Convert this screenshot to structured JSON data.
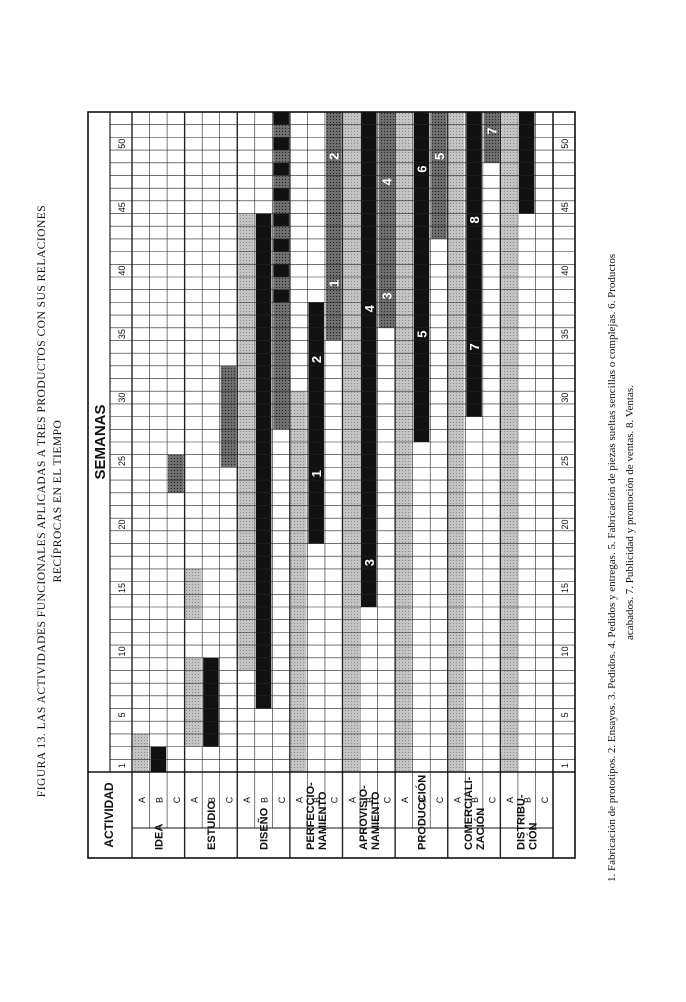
{
  "caption": {
    "line1": "FIGURA 13.   LAS ACTIVIDADES FUNCIONALES APLICADAS A TRES PRODUCTOS CON SUS RELACIONES",
    "line2": "RECÍPROCAS EN EL TIEMPO"
  },
  "notes": {
    "line1": "1. Fabricación de prototipos.   2. Ensayos.   3. Pedidos.   4. Pedidos y entregas.   5. Fabricación de piezas sueltas sencillas o complejas.   6. Productos",
    "line2": "acabados.   7. Publicidad y promoción de ventas.   8. Ventas."
  },
  "chart_data": {
    "type": "gantt",
    "header_activity": "ACTIVIDAD",
    "header_weeks": "SEMANAS",
    "week_range": [
      1,
      52
    ],
    "tick_labels": [
      "1",
      "5",
      "10",
      "15",
      "20",
      "25",
      "30",
      "35",
      "40",
      "45",
      "50"
    ],
    "fills": {
      "black": "#111111",
      "dark": "#6e6e6e",
      "light": "#c4c4c4",
      "stripe": "#111111"
    },
    "groups": [
      {
        "name": "IDEA",
        "rows": [
          {
            "label": "A",
            "bars": []
          },
          {
            "label": "B",
            "bars": [
              {
                "start": 1,
                "end": 2,
                "fill": "black"
              }
            ]
          },
          {
            "label": "C",
            "bars": []
          }
        ]
      },
      {
        "name": "ESTUDIO",
        "rows": [
          {
            "label": "A",
            "bars": []
          },
          {
            "label": "B",
            "bars": [
              {
                "start": 3,
                "end": 9,
                "fill": "black"
              }
            ]
          },
          {
            "label": "C",
            "bars": []
          }
        ]
      },
      {
        "name": "DISEÑO",
        "rows": [
          {
            "label": "A",
            "bars": []
          },
          {
            "label": "B",
            "bars": [
              {
                "start": 6,
                "end": 44,
                "fill": "black"
              }
            ]
          },
          {
            "label": "C",
            "bars": []
          }
        ]
      },
      {
        "name": "PERFECCIO-\nNAMIENTO",
        "rows": [
          {
            "label": "A",
            "bars": []
          },
          {
            "label": "B",
            "bars": [
              {
                "start": 19,
                "end": 37,
                "fill": "black",
                "marks": [
                  {
                    "label": "1",
                    "at": 24
                  },
                  {
                    "label": "2",
                    "at": 33
                  }
                ]
              }
            ]
          },
          {
            "label": "C",
            "bars": [
              {
                "start": 35,
                "end": 52,
                "fill": "dark",
                "marks": [
                  {
                    "label": "1",
                    "at": 39
                  },
                  {
                    "label": "2",
                    "at": 49
                  }
                ]
              }
            ]
          }
        ]
      },
      {
        "name": "APROVISIO-\nNAMIENTO",
        "rows": [
          {
            "label": "A",
            "bars": []
          },
          {
            "label": "B",
            "bars": [
              {
                "start": 14,
                "end": 52,
                "fill": "black",
                "marks": [
                  {
                    "label": "3",
                    "at": 17
                  },
                  {
                    "label": "4",
                    "at": 37
                  }
                ]
              }
            ]
          },
          {
            "label": "C",
            "bars": [
              {
                "start": 36,
                "end": 52,
                "fill": "dark",
                "marks": [
                  {
                    "label": "3",
                    "at": 38
                  },
                  {
                    "label": "4",
                    "at": 47
                  }
                ]
              }
            ]
          }
        ]
      },
      {
        "name": "PRODUCCIÓN",
        "rows": [
          {
            "label": "A",
            "bars": []
          },
          {
            "label": "B",
            "bars": [
              {
                "start": 27,
                "end": 52,
                "fill": "black",
                "marks": [
                  {
                    "label": "5",
                    "at": 35
                  },
                  {
                    "label": "6",
                    "at": 48
                  }
                ]
              }
            ]
          },
          {
            "label": "C",
            "bars": [
              {
                "start": 43,
                "end": 52,
                "fill": "dark",
                "marks": [
                  {
                    "label": "5",
                    "at": 49
                  }
                ]
              }
            ]
          }
        ]
      },
      {
        "name": "COMERCIALI-\nZACIÓN",
        "rows": [
          {
            "label": "A",
            "bars": []
          },
          {
            "label": "B",
            "bars": [
              {
                "start": 29,
                "end": 52,
                "fill": "black",
                "marks": [
                  {
                    "label": "7",
                    "at": 34
                  },
                  {
                    "label": "8",
                    "at": 44
                  }
                ]
              }
            ]
          },
          {
            "label": "C",
            "bars": [
              {
                "start": 49,
                "end": 52,
                "fill": "dark",
                "marks": [
                  {
                    "label": "7",
                    "at": 51
                  }
                ]
              }
            ]
          }
        ]
      },
      {
        "name": "DISTRIBU-\nCIÓN",
        "rows": [
          {
            "label": "A",
            "bars": []
          },
          {
            "label": "B",
            "bars": [
              {
                "start": 45,
                "end": 52,
                "fill": "black"
              }
            ]
          },
          {
            "label": "C",
            "bars": []
          }
        ]
      }
    ],
    "row_a_bars": [
      {
        "group": 0,
        "start": 1,
        "end": 3,
        "fill": "light"
      },
      {
        "group": 1,
        "start": 3,
        "end": 9,
        "fill": "light"
      },
      {
        "group": 2,
        "start": 9,
        "end": 44,
        "fill": "light"
      },
      {
        "group": 3,
        "start": 1,
        "end": 30,
        "fill": "light"
      },
      {
        "group": 4,
        "start": 1,
        "end": 52,
        "fill": "light"
      },
      {
        "group": 5,
        "start": 1,
        "end": 52,
        "fill": "light"
      },
      {
        "group": 6,
        "start": 1,
        "end": 52,
        "fill": "light"
      },
      {
        "group": 7,
        "start": 1,
        "end": 52,
        "fill": "light"
      }
    ],
    "extra_bars": [
      {
        "group": 0,
        "row": 2,
        "start": 23,
        "end": 25,
        "fill": "dark"
      },
      {
        "group": 1,
        "row": 0,
        "start": 13,
        "end": 16,
        "fill": "light"
      },
      {
        "group": 1,
        "row": 2,
        "start": 25,
        "end": 32,
        "fill": "dark"
      },
      {
        "group": 2,
        "row": 0,
        "start": 18,
        "end": 22,
        "fill": "light"
      },
      {
        "group": 2,
        "row": 2,
        "start": 28,
        "end": 52,
        "fill": "dark"
      },
      {
        "group": 2,
        "row": 2,
        "start": 38,
        "end": 52,
        "fill": "stripe"
      },
      {
        "group": 3,
        "row": 0,
        "start": 26,
        "end": 30,
        "fill": "light"
      }
    ]
  }
}
